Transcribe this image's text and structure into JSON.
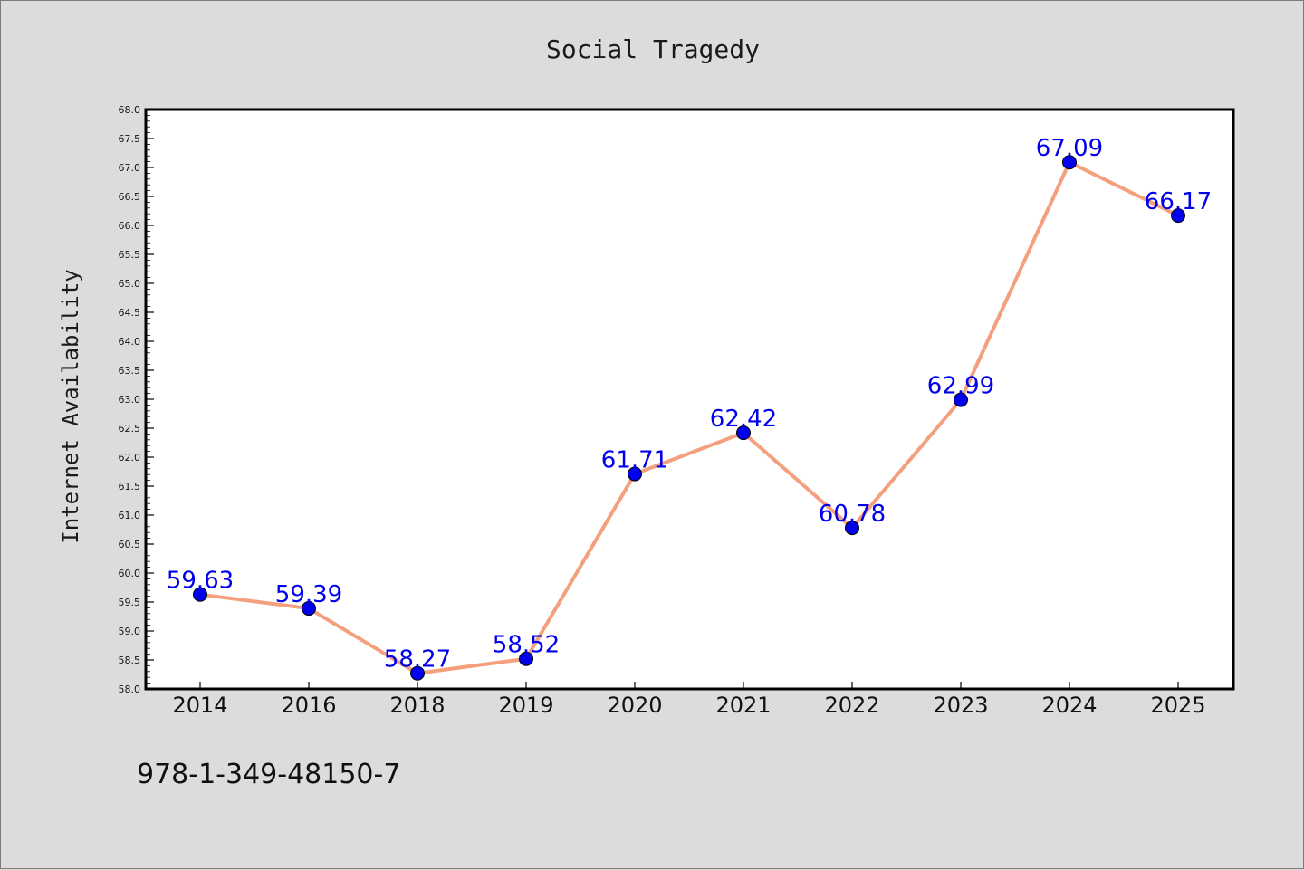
{
  "footer": {
    "isbn": "978-1-349-48150-7"
  },
  "colors": {
    "background": "#dcdcdc",
    "plot_background": "#ffffff",
    "line": "#f4a07e",
    "marker": "#0000ee",
    "data_label": "#0000ee"
  },
  "chart_data": {
    "type": "line",
    "title": "Social Tragedy",
    "xlabel": "",
    "ylabel": "Internet Availability",
    "categories": [
      "2014",
      "2016",
      "2018",
      "2019",
      "2020",
      "2021",
      "2022",
      "2023",
      "2024",
      "2025"
    ],
    "series": [
      {
        "values": [
          59.63,
          59.39,
          58.27,
          58.52,
          61.71,
          62.42,
          60.78,
          62.99,
          67.09,
          66.17
        ],
        "labels": [
          "59.63",
          "59.39",
          "58.27",
          "58.52",
          "61.71",
          "62.42",
          "60.78",
          "62.99",
          "67.09",
          "66.17"
        ]
      }
    ],
    "ylim": [
      58.0,
      68.0
    ],
    "yticks": [
      "58.0",
      "58.5",
      "59.0",
      "59.5",
      "60.0",
      "60.5",
      "61.0",
      "61.5",
      "62.0",
      "62.5",
      "63.0",
      "63.5",
      "64.0",
      "64.5",
      "65.0",
      "65.5",
      "66.0",
      "66.5",
      "67.0",
      "67.5",
      "68.0"
    ],
    "grid": false,
    "legend": "none"
  }
}
